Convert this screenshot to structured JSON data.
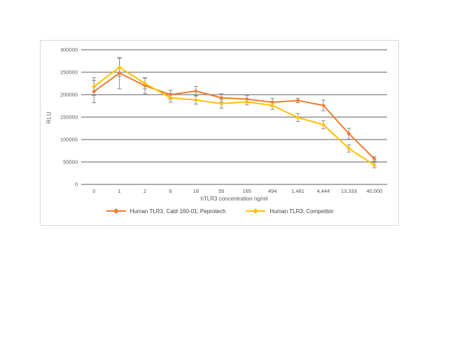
{
  "chart_data": {
    "type": "line",
    "x_categories": [
      "0",
      "1",
      "2",
      "6",
      "18",
      "55",
      "165",
      "494",
      "1,481",
      "4,444",
      "13,333",
      "40,000"
    ],
    "xlabel": "hTLR3 concentration ng/ml",
    "ylabel": "RLU",
    "ylim": [
      0,
      300000
    ],
    "ytick_step": 50000,
    "ytick_labels": [
      "0",
      "50000",
      "100000",
      "150000",
      "200000",
      "250000",
      "300000"
    ],
    "grid": "horizontal",
    "gridline_color": "#262626",
    "frame_border_color": "#d9d9d9",
    "error_bar_color": "#8c8c8c",
    "legend_position": "bottom",
    "series": [
      {
        "name": "Human TLR3, Cat# 160-01; Peprotech",
        "color": "#ED7D31",
        "marker": "diamond",
        "values": [
          207000,
          248000,
          220000,
          200000,
          208000,
          193000,
          190000,
          183000,
          187000,
          176000,
          113000,
          57000
        ],
        "errors": [
          25000,
          35000,
          18000,
          10000,
          10000,
          9000,
          8000,
          9000,
          5000,
          12000,
          12000,
          5000
        ]
      },
      {
        "name": "Human TLR3; Competitor",
        "color": "#FFC000",
        "marker": "diamond",
        "values": [
          218000,
          261000,
          225000,
          193000,
          188000,
          180000,
          184000,
          176000,
          149000,
          133000,
          80000,
          43000
        ],
        "errors": [
          20000,
          20000,
          12000,
          10000,
          9000,
          10000,
          7000,
          9000,
          9000,
          9000,
          8000,
          6000
        ]
      }
    ]
  }
}
